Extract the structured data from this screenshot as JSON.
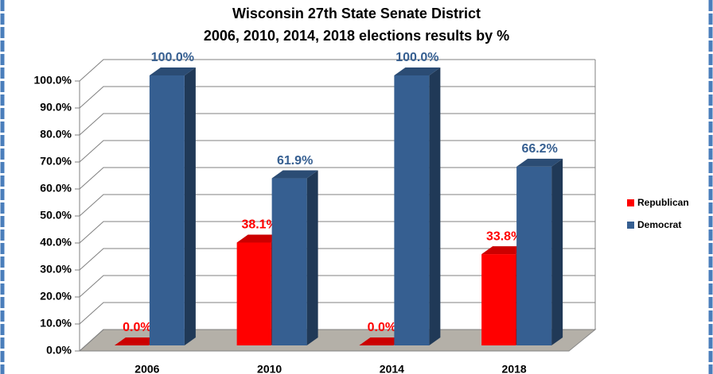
{
  "chart_data": {
    "type": "bar3d",
    "title": "Wisconsin 27th State Senate District",
    "subtitle": "2006, 2010, 2014, 2018 elections results by %",
    "categories": [
      "2006",
      "2010",
      "2014",
      "2018"
    ],
    "series": [
      {
        "name": "Republican",
        "color": "#ff0000",
        "values": [
          0,
          38.1,
          0,
          33.8
        ],
        "value_labels": [
          "0.0%",
          "38.1%",
          "0.0%",
          "33.8%"
        ]
      },
      {
        "name": "Democrat",
        "color": "#365f91",
        "values": [
          100,
          61.9,
          100,
          66.2
        ],
        "value_labels": [
          "100.0%",
          "61.9%",
          "100.0%",
          "66.2%"
        ]
      }
    ],
    "ylim": [
      0,
      100
    ],
    "yticks": [
      {
        "value": 0,
        "label": "0.0%"
      },
      {
        "value": 10,
        "label": "10.0%"
      },
      {
        "value": 20,
        "label": "20.0%"
      },
      {
        "value": 30,
        "label": "30.0%"
      },
      {
        "value": 40,
        "label": "40.0%"
      },
      {
        "value": 50,
        "label": "50.0%"
      },
      {
        "value": 60,
        "label": "60.0%"
      },
      {
        "value": 70,
        "label": "70.0%"
      },
      {
        "value": 80,
        "label": "80.0%"
      },
      {
        "value": 90,
        "label": "90.0%"
      },
      {
        "value": 100,
        "label": "100.0%"
      }
    ],
    "grid": true,
    "legend": "right"
  }
}
